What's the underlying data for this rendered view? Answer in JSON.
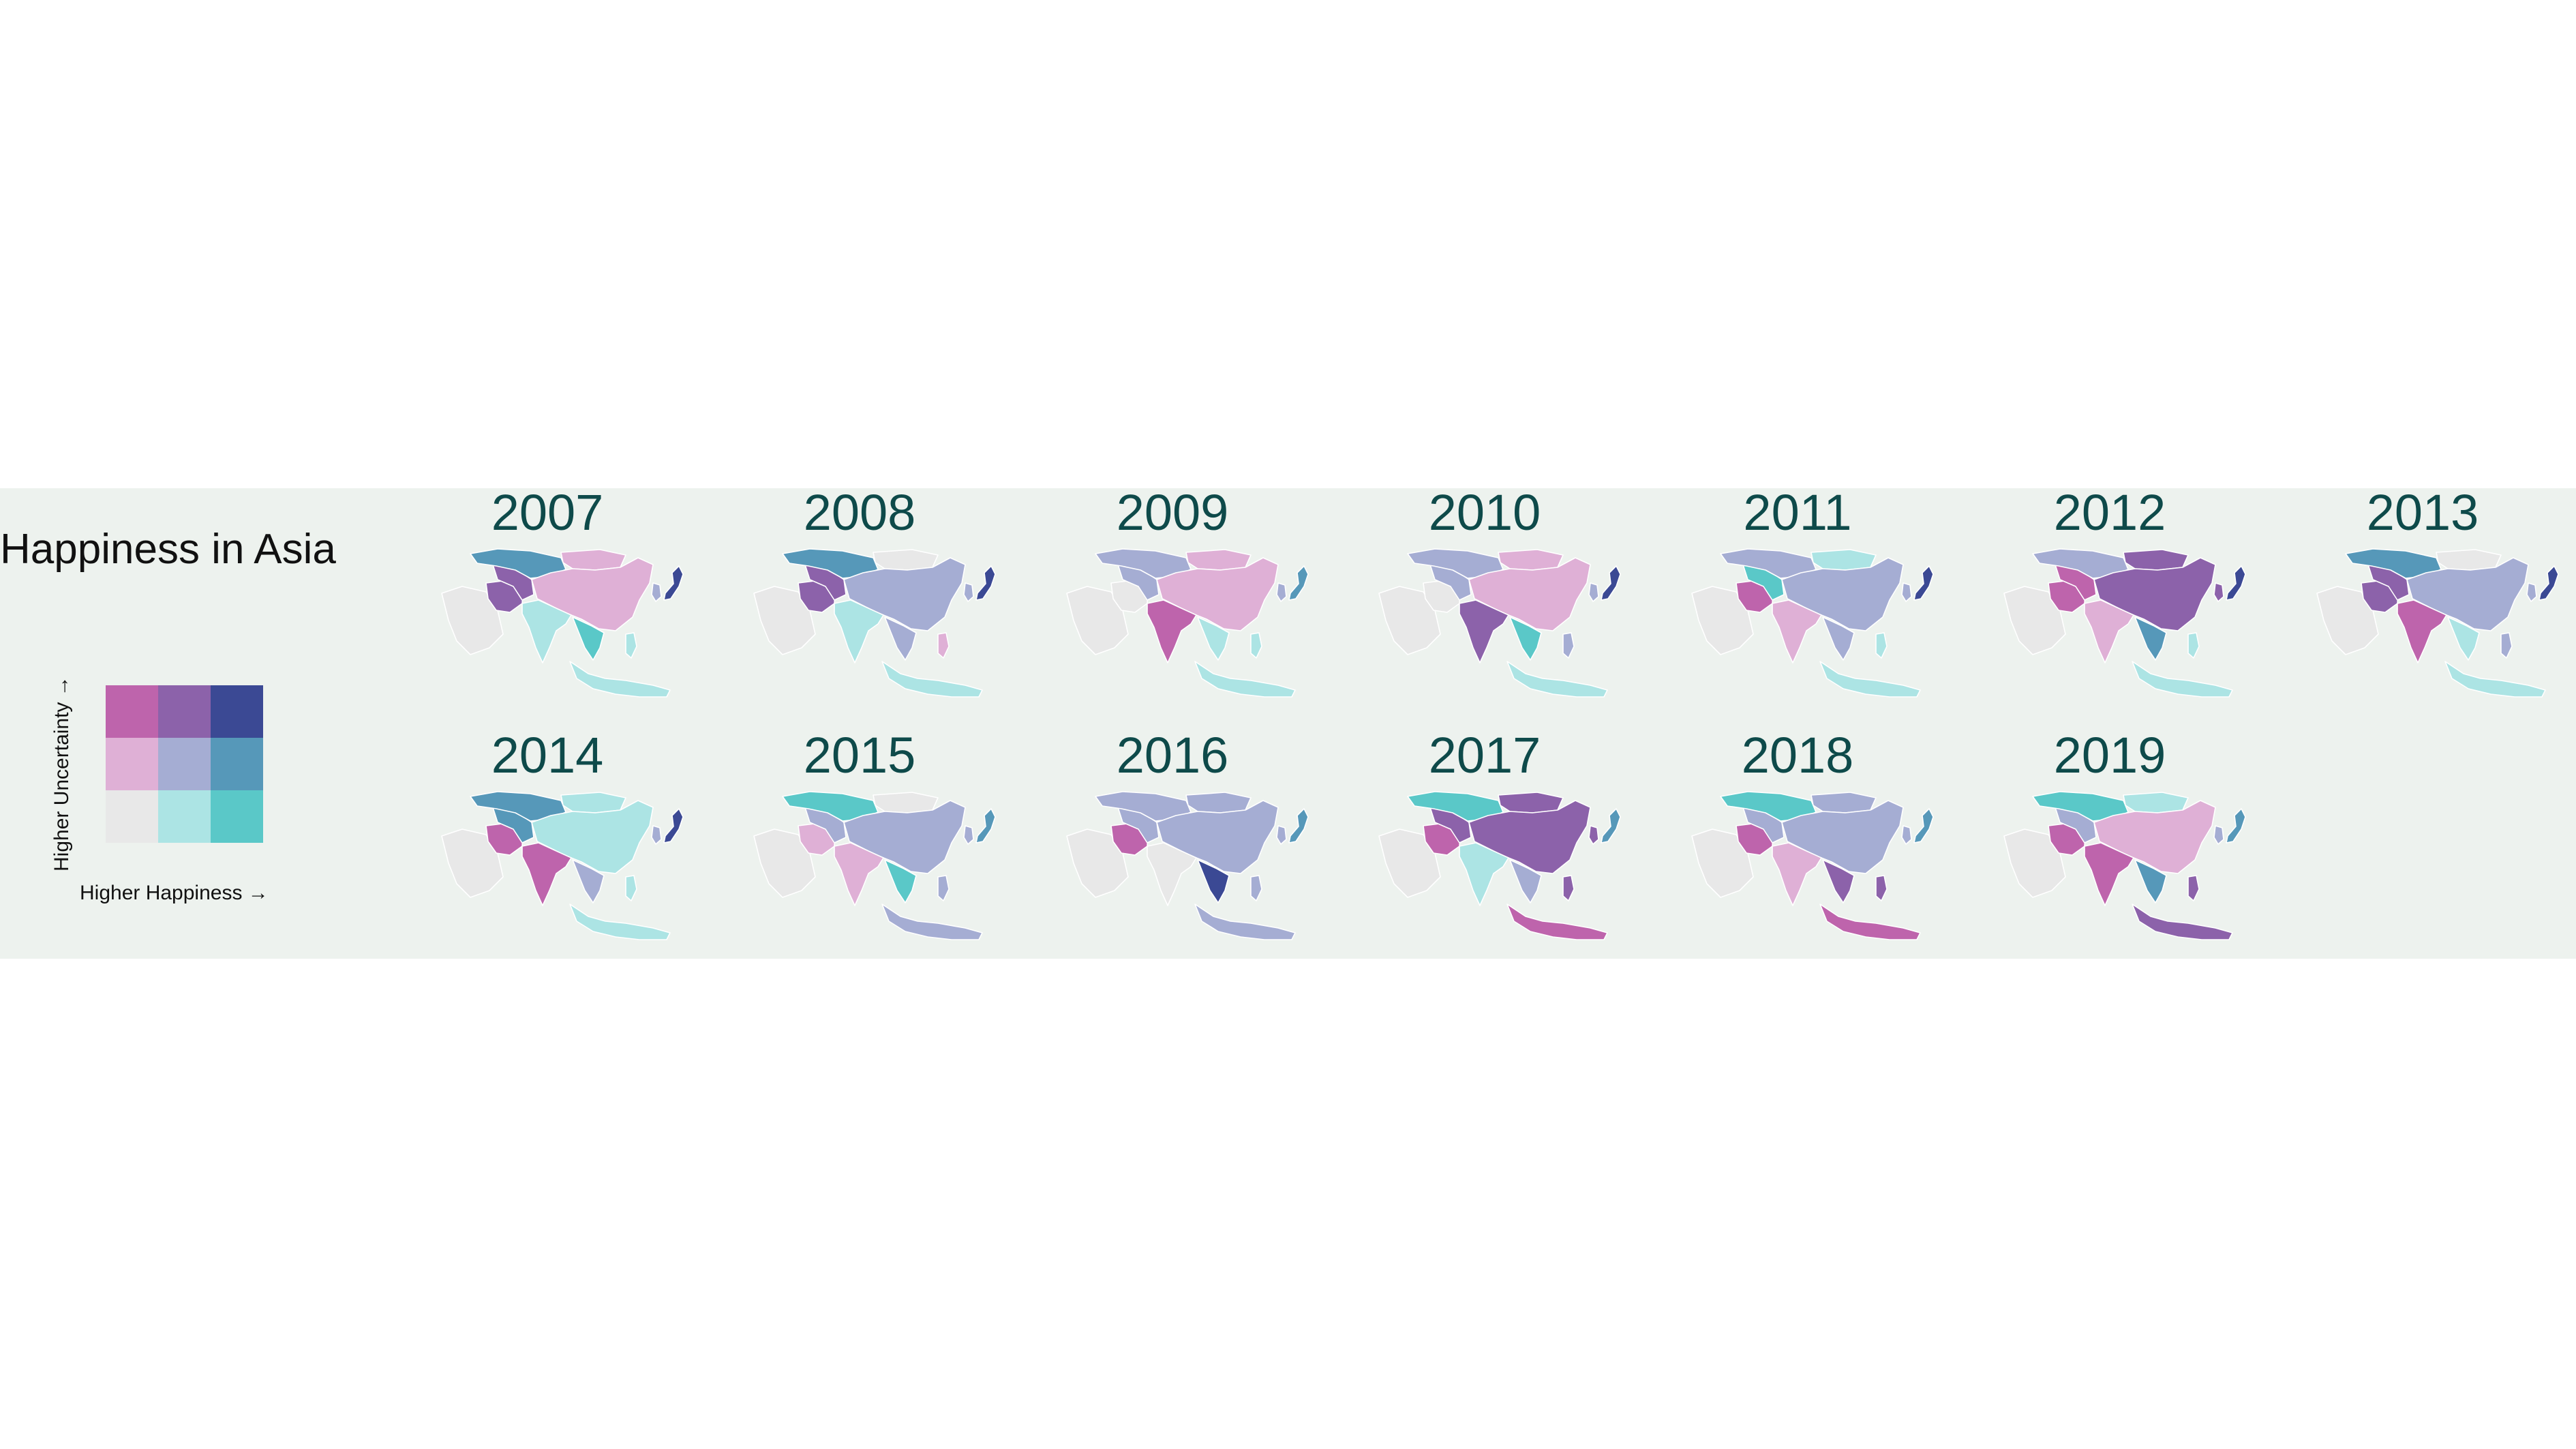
{
  "title": "Happiness in Asia",
  "legend": {
    "x_label": "Higher Happiness →",
    "y_label": "Higher Uncertainty →",
    "colors": [
      [
        "#be64ac",
        "#8c62aa",
        "#3b4994"
      ],
      [
        "#dfb0d6",
        "#a5add3",
        "#5698b9"
      ],
      [
        "#e8e8e8",
        "#ace4e4",
        "#5ac8c8"
      ]
    ]
  },
  "maps": [
    {
      "year": "2007",
      "regions": {
        "kazakh": "#5698b9",
        "central": "#8c62aa",
        "iran": "#8c62aa",
        "arabia": "#e8e8e8",
        "china": "#dfb0d6",
        "mongolia": "#dfb0d6",
        "india": "#ace4e4",
        "sea": "#5ac8c8",
        "indonesia": "#ace4e4",
        "japan": "#3b4994",
        "korea": "#a5add3",
        "phil": "#ace4e4"
      }
    },
    {
      "year": "2008",
      "regions": {
        "kazakh": "#5698b9",
        "central": "#8c62aa",
        "iran": "#8c62aa",
        "arabia": "#e8e8e8",
        "china": "#a5add3",
        "mongolia": "#e8e8e8",
        "india": "#ace4e4",
        "sea": "#a5add3",
        "indonesia": "#ace4e4",
        "japan": "#3b4994",
        "korea": "#a5add3",
        "phil": "#dfb0d6"
      }
    },
    {
      "year": "2009",
      "regions": {
        "kazakh": "#a5add3",
        "central": "#a5add3",
        "iran": "#e8e8e8",
        "arabia": "#e8e8e8",
        "china": "#dfb0d6",
        "mongolia": "#dfb0d6",
        "india": "#be64ac",
        "sea": "#ace4e4",
        "indonesia": "#ace4e4",
        "japan": "#5698b9",
        "korea": "#a5add3",
        "phil": "#ace4e4"
      }
    },
    {
      "year": "2010",
      "regions": {
        "kazakh": "#a5add3",
        "central": "#a5add3",
        "iran": "#e8e8e8",
        "arabia": "#e8e8e8",
        "china": "#dfb0d6",
        "mongolia": "#dfb0d6",
        "india": "#8c62aa",
        "sea": "#5ac8c8",
        "indonesia": "#ace4e4",
        "japan": "#3b4994",
        "korea": "#a5add3",
        "phil": "#a5add3"
      }
    },
    {
      "year": "2011",
      "regions": {
        "kazakh": "#a5add3",
        "central": "#5ac8c8",
        "iran": "#be64ac",
        "arabia": "#e8e8e8",
        "china": "#a5add3",
        "mongolia": "#ace4e4",
        "india": "#dfb0d6",
        "sea": "#a5add3",
        "indonesia": "#ace4e4",
        "japan": "#3b4994",
        "korea": "#a5add3",
        "phil": "#ace4e4"
      }
    },
    {
      "year": "2012",
      "regions": {
        "kazakh": "#a5add3",
        "central": "#be64ac",
        "iran": "#be64ac",
        "arabia": "#e8e8e8",
        "china": "#8c62aa",
        "mongolia": "#8c62aa",
        "india": "#dfb0d6",
        "sea": "#5698b9",
        "indonesia": "#ace4e4",
        "japan": "#3b4994",
        "korea": "#8c62aa",
        "phil": "#ace4e4"
      }
    },
    {
      "year": "2013",
      "regions": {
        "kazakh": "#5698b9",
        "central": "#8c62aa",
        "iran": "#8c62aa",
        "arabia": "#e8e8e8",
        "china": "#a5add3",
        "mongolia": "#e8e8e8",
        "india": "#be64ac",
        "sea": "#ace4e4",
        "indonesia": "#ace4e4",
        "japan": "#3b4994",
        "korea": "#a5add3",
        "phil": "#a5add3"
      }
    },
    {
      "year": "2014",
      "regions": {
        "kazakh": "#5698b9",
        "central": "#5698b9",
        "iran": "#be64ac",
        "arabia": "#e8e8e8",
        "china": "#ace4e4",
        "mongolia": "#ace4e4",
        "india": "#be64ac",
        "sea": "#a5add3",
        "indonesia": "#ace4e4",
        "japan": "#3b4994",
        "korea": "#a5add3",
        "phil": "#ace4e4"
      }
    },
    {
      "year": "2015",
      "regions": {
        "kazakh": "#5ac8c8",
        "central": "#a5add3",
        "iran": "#dfb0d6",
        "arabia": "#e8e8e8",
        "china": "#a5add3",
        "mongolia": "#e8e8e8",
        "india": "#dfb0d6",
        "sea": "#5ac8c8",
        "indonesia": "#a5add3",
        "japan": "#5698b9",
        "korea": "#a5add3",
        "phil": "#a5add3"
      }
    },
    {
      "year": "2016",
      "regions": {
        "kazakh": "#a5add3",
        "central": "#a5add3",
        "iran": "#be64ac",
        "arabia": "#e8e8e8",
        "china": "#a5add3",
        "mongolia": "#a5add3",
        "india": "#e8e8e8",
        "sea": "#3b4994",
        "indonesia": "#a5add3",
        "japan": "#5698b9",
        "korea": "#a5add3",
        "phil": "#a5add3"
      }
    },
    {
      "year": "2017",
      "regions": {
        "kazakh": "#5ac8c8",
        "central": "#8c62aa",
        "iran": "#be64ac",
        "arabia": "#e8e8e8",
        "china": "#8c62aa",
        "mongolia": "#8c62aa",
        "india": "#ace4e4",
        "sea": "#a5add3",
        "indonesia": "#be64ac",
        "japan": "#5698b9",
        "korea": "#8c62aa",
        "phil": "#8c62aa"
      }
    },
    {
      "year": "2018",
      "regions": {
        "kazakh": "#5ac8c8",
        "central": "#a5add3",
        "iran": "#be64ac",
        "arabia": "#e8e8e8",
        "china": "#a5add3",
        "mongolia": "#a5add3",
        "india": "#dfb0d6",
        "sea": "#8c62aa",
        "indonesia": "#be64ac",
        "japan": "#5698b9",
        "korea": "#a5add3",
        "phil": "#8c62aa"
      }
    },
    {
      "year": "2019",
      "regions": {
        "kazakh": "#5ac8c8",
        "central": "#a5add3",
        "iran": "#be64ac",
        "arabia": "#e8e8e8",
        "china": "#dfb0d6",
        "mongolia": "#ace4e4",
        "india": "#be64ac",
        "sea": "#5698b9",
        "indonesia": "#8c62aa",
        "japan": "#5698b9",
        "korea": "#a5add3",
        "phil": "#8c62aa"
      }
    }
  ]
}
